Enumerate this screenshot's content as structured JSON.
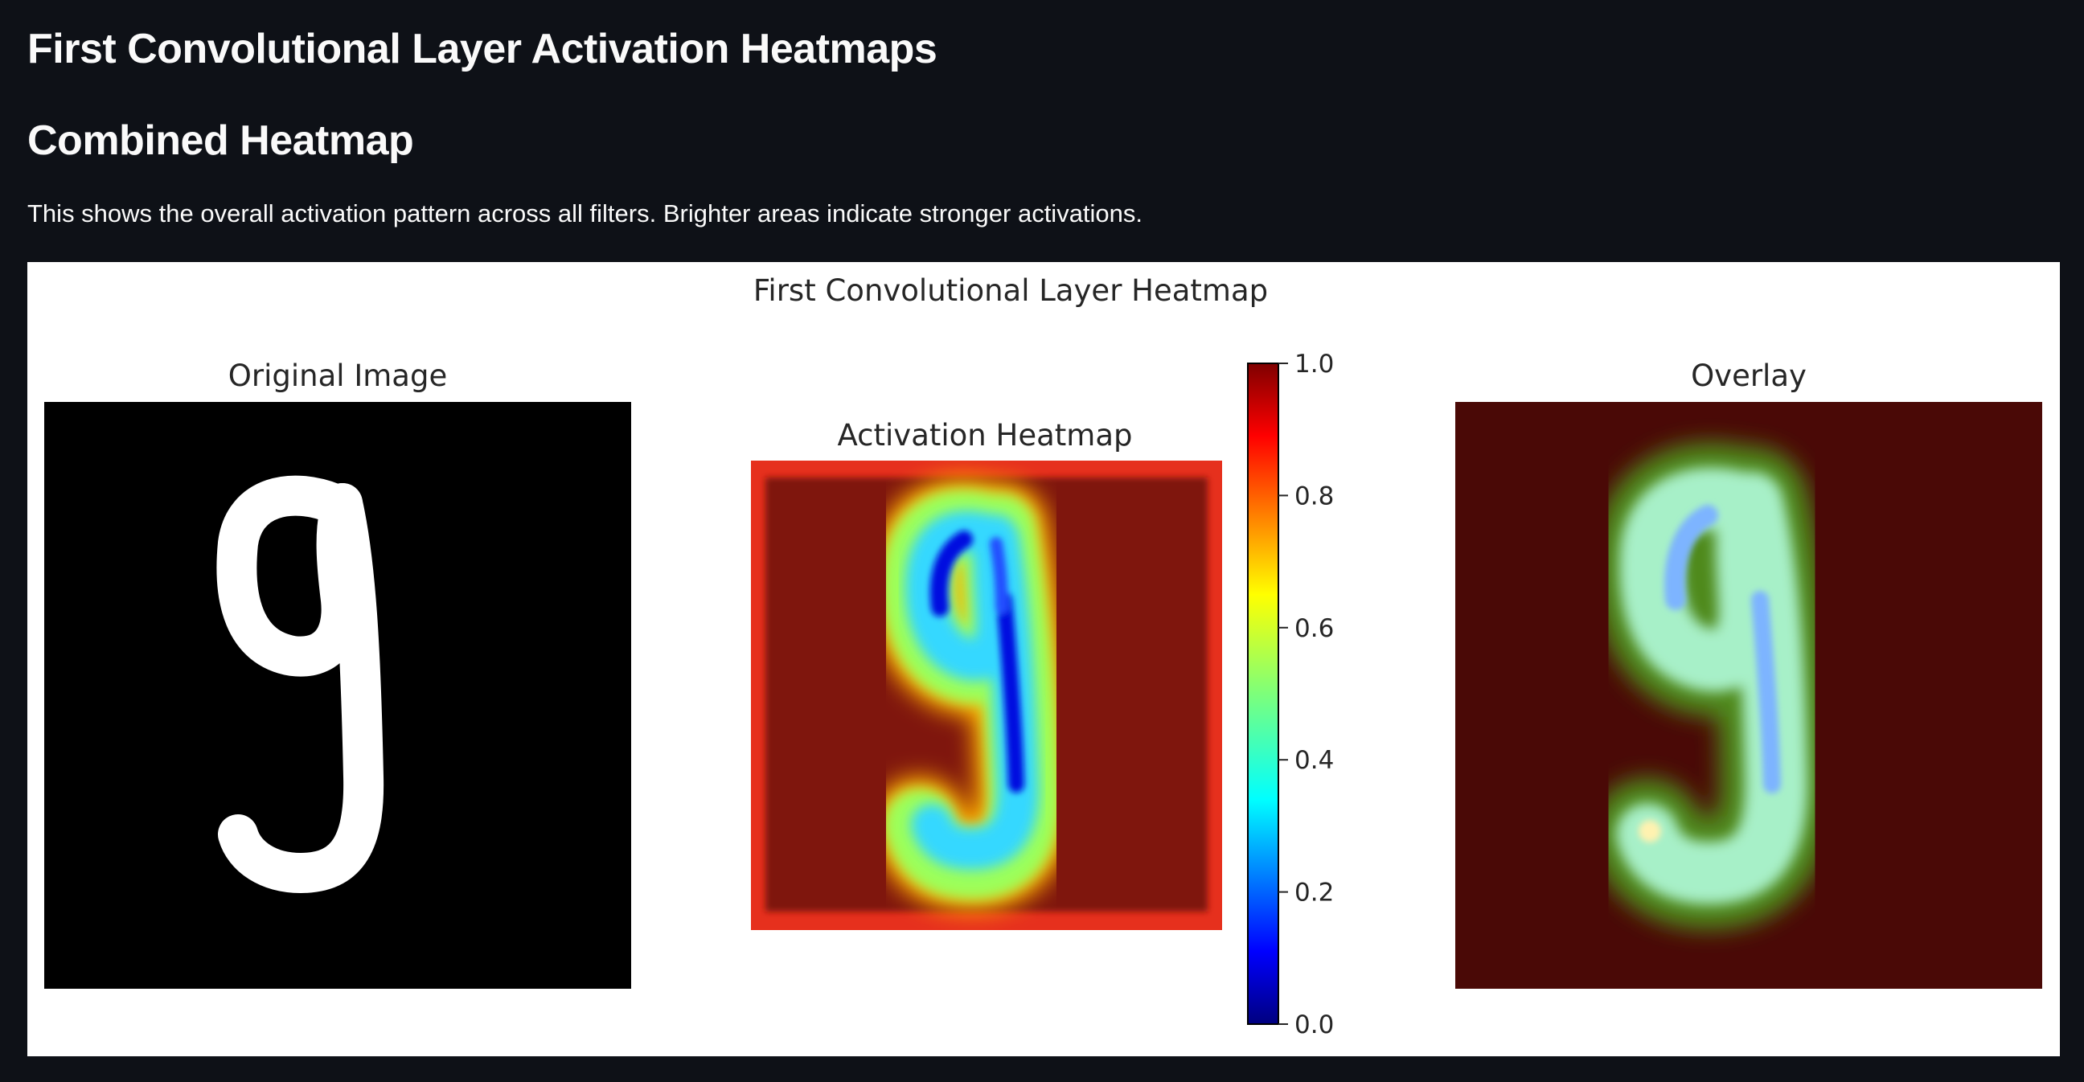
{
  "page": {
    "title": "First Convolutional Layer Activation Heatmaps",
    "subtitle": "Combined Heatmap",
    "description": "This shows the overall activation pattern across all filters. Brighter areas indicate stronger activations."
  },
  "figure": {
    "suptitle": "First Convolutional Layer Heatmap",
    "panels": {
      "original": {
        "title": "Original Image"
      },
      "heatmap": {
        "title": "Activation Heatmap"
      },
      "overlay": {
        "title": "Overlay"
      }
    },
    "colorbar": {
      "colormap": "jet",
      "range": [
        0.0,
        1.0
      ],
      "ticks": [
        "0.0",
        "0.2",
        "0.4",
        "0.6",
        "0.8",
        "1.0"
      ]
    },
    "colors": {
      "heatmap_background": "#7f1410",
      "heatmap_border": "#e6301d",
      "overlay_background": "#4a0906",
      "digit_fill": "#ffffff"
    },
    "digit": "9"
  }
}
